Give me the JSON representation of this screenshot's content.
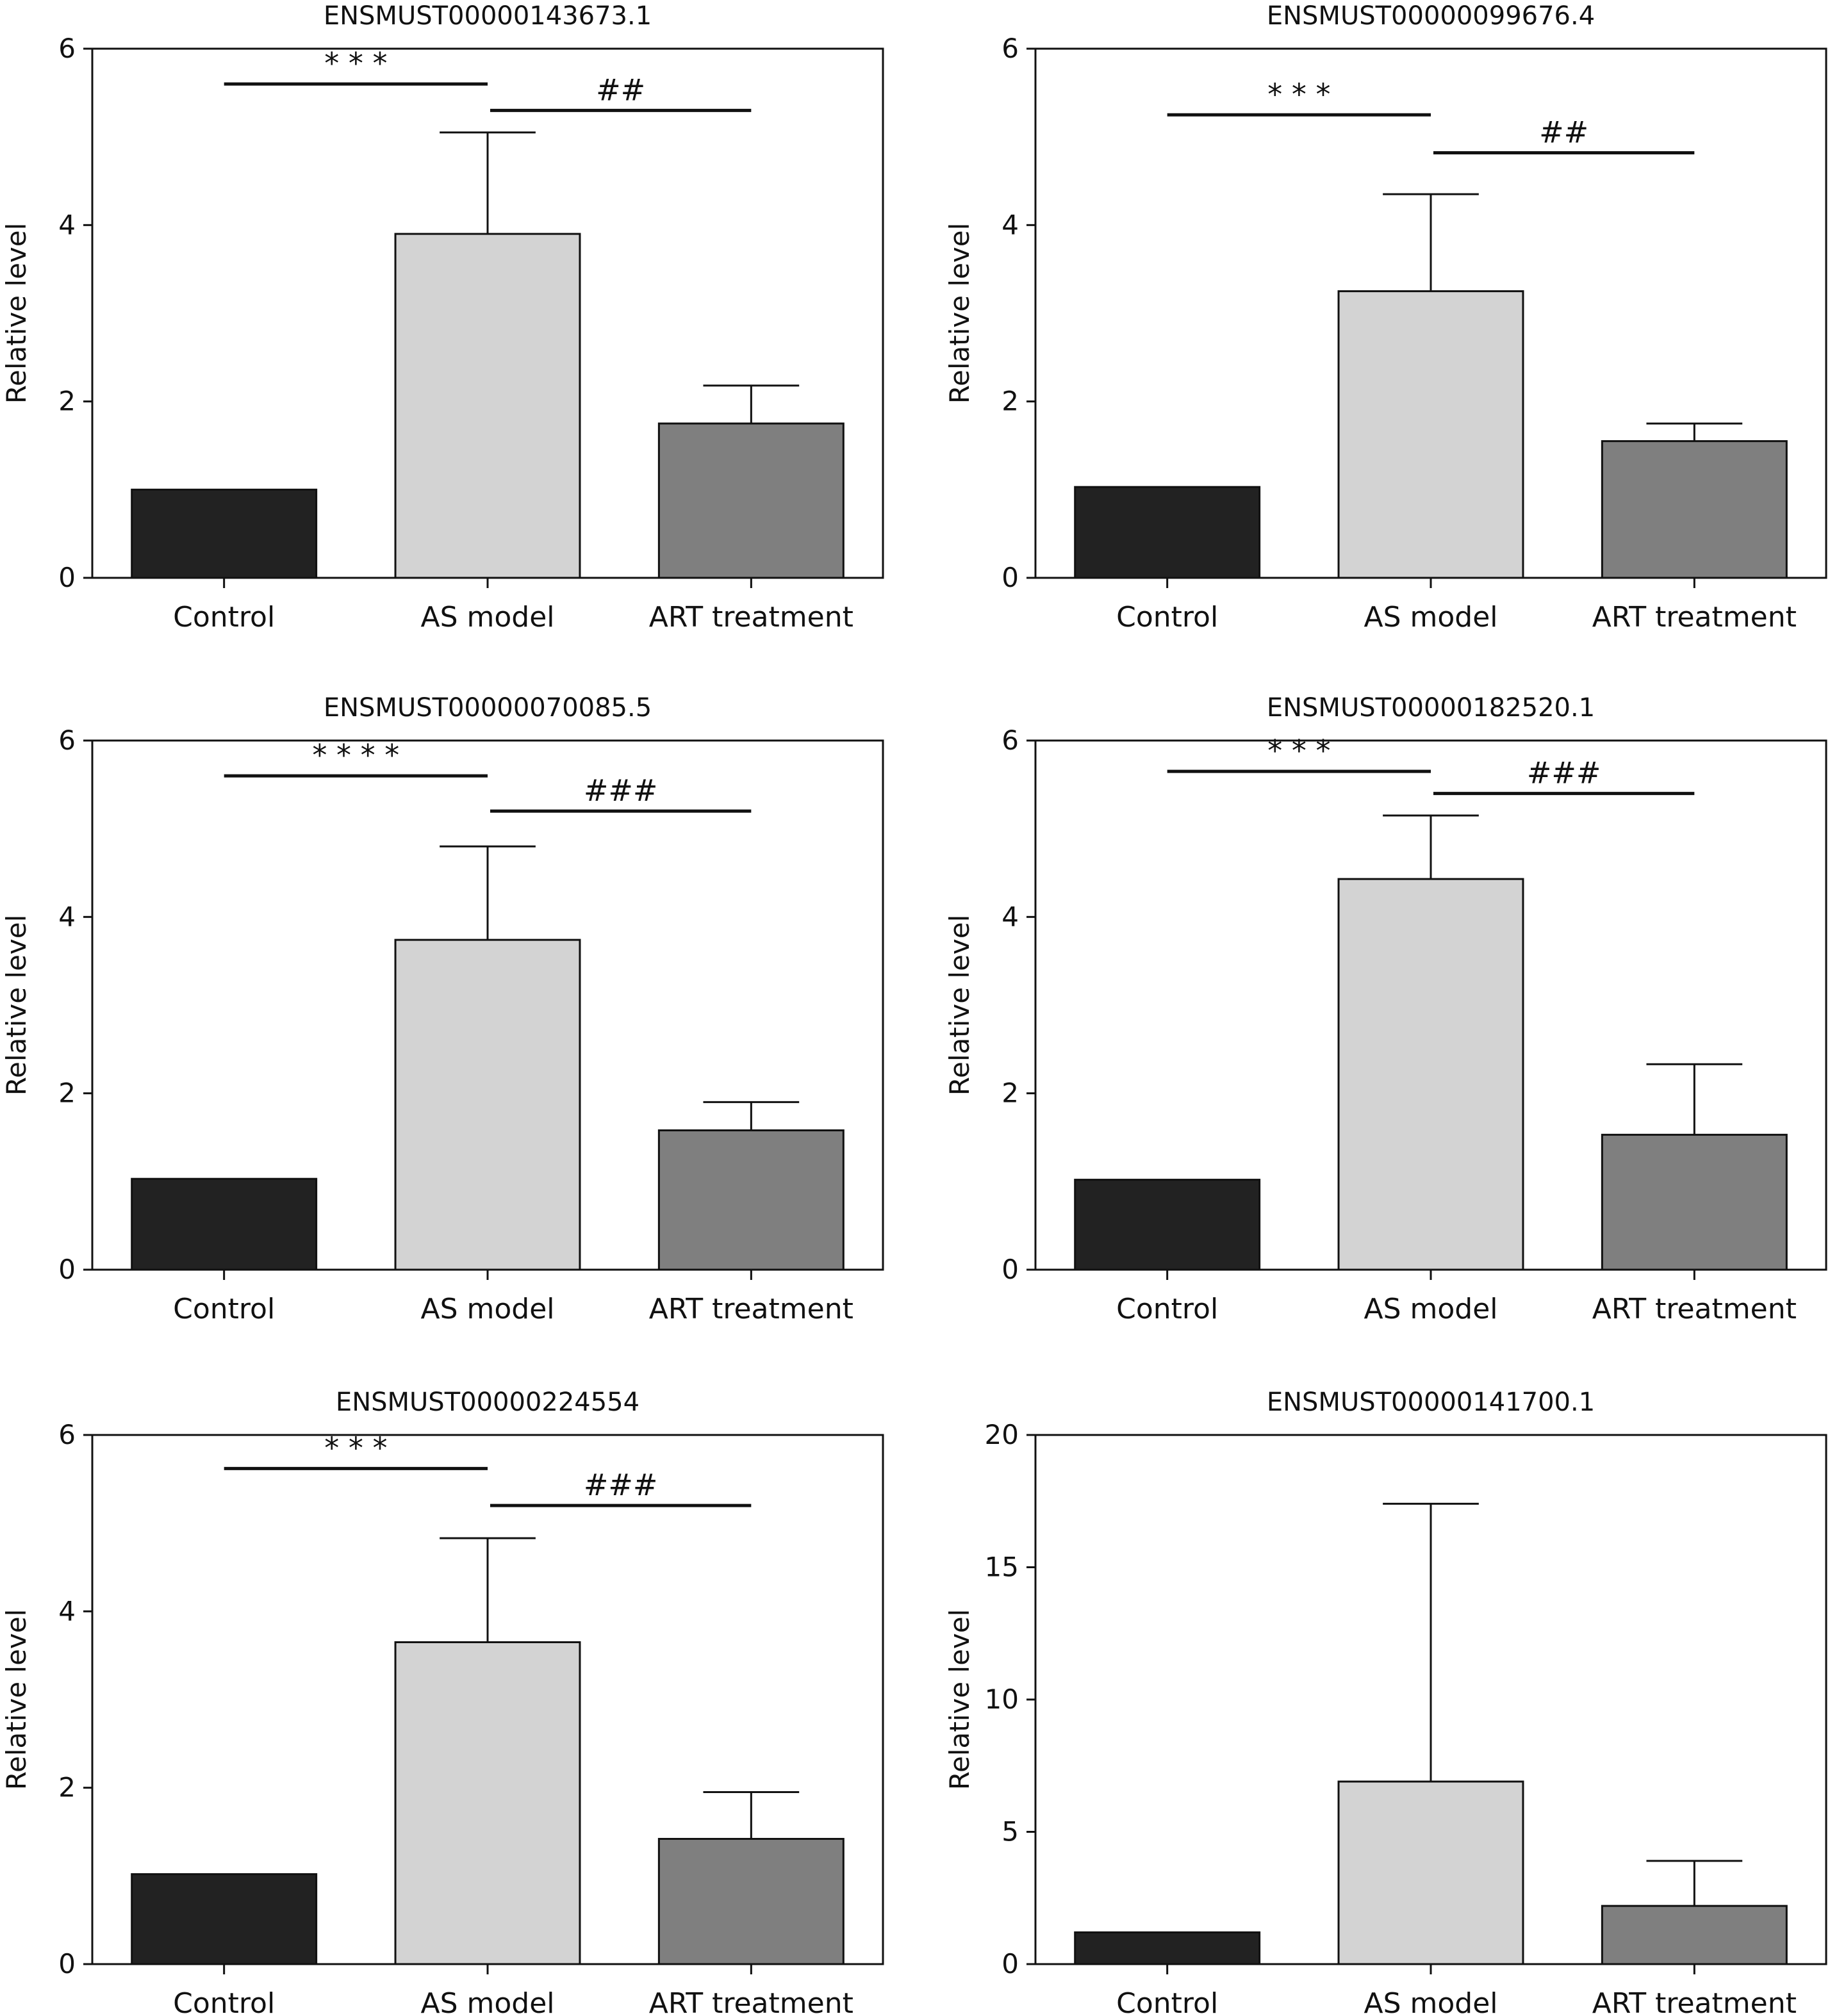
{
  "figure": {
    "colors": {
      "control": "#222222",
      "as_model": "#d3d3d3",
      "art_treatment": "#7f7f7f",
      "axis": "#111111"
    }
  },
  "chart_data": [
    {
      "type": "bar",
      "title": "ENSMUST00000143673.1",
      "ylabel": "Relative level",
      "categories": [
        "Control",
        "AS model",
        "ART treatment"
      ],
      "values": [
        1.0,
        3.9,
        1.75
      ],
      "errors": [
        0.0,
        1.15,
        0.43
      ],
      "ylim": [
        0,
        6
      ],
      "yticks": [
        0,
        2,
        4,
        6
      ],
      "significance": [
        {
          "from": 0,
          "to": 1,
          "label": "* * *",
          "y": 5.6
        },
        {
          "from": 1,
          "to": 2,
          "label": "##",
          "y": 5.3
        }
      ]
    },
    {
      "type": "bar",
      "title": "ENSMUST00000099676.4",
      "ylabel": "Relative level",
      "categories": [
        "Control",
        "AS model",
        "ART treatment"
      ],
      "values": [
        1.03,
        3.25,
        1.55
      ],
      "errors": [
        0.0,
        1.1,
        0.2
      ],
      "ylim": [
        0,
        6
      ],
      "yticks": [
        0,
        2,
        4,
        6
      ],
      "significance": [
        {
          "from": 0,
          "to": 1,
          "label": "* * *",
          "y": 5.25
        },
        {
          "from": 1,
          "to": 2,
          "label": "##",
          "y": 4.82
        }
      ]
    },
    {
      "type": "bar",
      "title": "ENSMUST00000070085.5",
      "ylabel": "Relative level",
      "categories": [
        "Control",
        "AS model",
        "ART treatment"
      ],
      "values": [
        1.03,
        3.74,
        1.58
      ],
      "errors": [
        0.0,
        1.06,
        0.32
      ],
      "ylim": [
        0,
        6
      ],
      "yticks": [
        0,
        2,
        4,
        6
      ],
      "significance": [
        {
          "from": 0,
          "to": 1,
          "label": "* * * *",
          "y": 5.6
        },
        {
          "from": 1,
          "to": 2,
          "label": "###",
          "y": 5.2
        }
      ]
    },
    {
      "type": "bar",
      "title": "ENSMUST00000182520.1",
      "ylabel": "Relative level",
      "categories": [
        "Control",
        "AS model",
        "ART treatment"
      ],
      "values": [
        1.02,
        4.43,
        1.53
      ],
      "errors": [
        0.0,
        0.72,
        0.8
      ],
      "ylim": [
        0,
        6
      ],
      "yticks": [
        0,
        2,
        4,
        6
      ],
      "significance": [
        {
          "from": 0,
          "to": 1,
          "label": "* * *",
          "y": 5.65
        },
        {
          "from": 1,
          "to": 2,
          "label": "###",
          "y": 5.4
        }
      ]
    },
    {
      "type": "bar",
      "title": "ENSMUST00000224554",
      "ylabel": "Relative level",
      "categories": [
        "Control",
        "AS model",
        "ART treatment"
      ],
      "values": [
        1.02,
        3.65,
        1.42
      ],
      "errors": [
        0.0,
        1.18,
        0.53
      ],
      "ylim": [
        0,
        6
      ],
      "yticks": [
        0,
        2,
        4,
        6
      ],
      "significance": [
        {
          "from": 0,
          "to": 1,
          "label": "* * *",
          "y": 5.62
        },
        {
          "from": 1,
          "to": 2,
          "label": "###",
          "y": 5.2
        }
      ]
    },
    {
      "type": "bar",
      "title": "ENSMUST00000141700.1",
      "ylabel": "Relative level",
      "categories": [
        "Control",
        "AS model",
        "ART treatment"
      ],
      "values": [
        1.2,
        6.9,
        2.2
      ],
      "errors": [
        0.0,
        10.5,
        1.7
      ],
      "ylim": [
        0,
        20
      ],
      "yticks": [
        0,
        5,
        10,
        15,
        20
      ],
      "significance": []
    }
  ]
}
